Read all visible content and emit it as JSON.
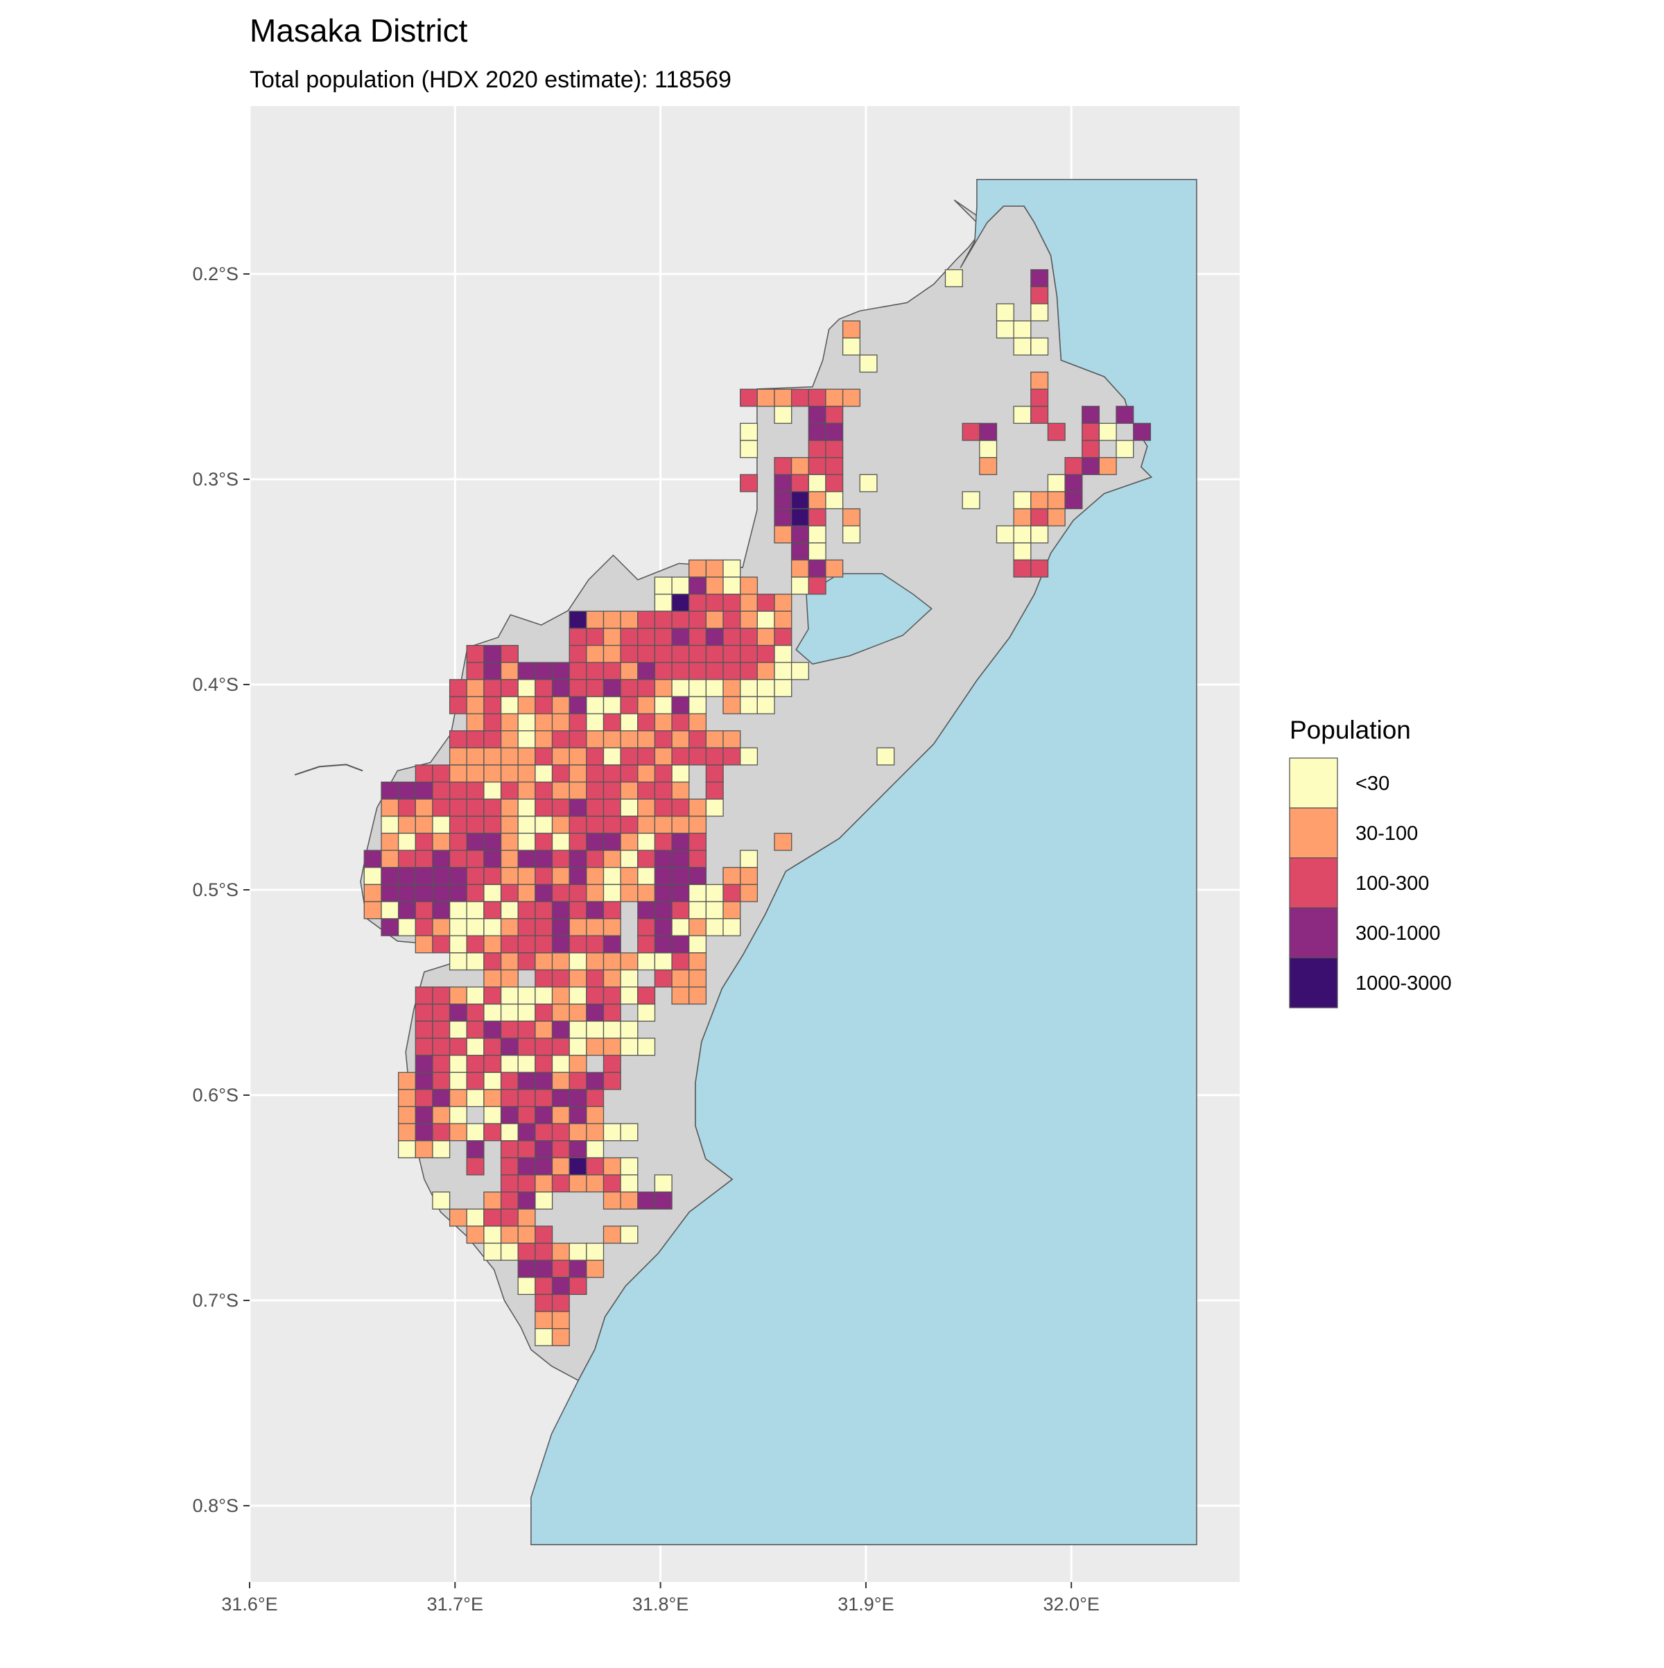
{
  "header": {
    "title": "Masaka District",
    "subtitle": "Total population (HDX 2020 estimate): 118569"
  },
  "chart_data": {
    "type": "map",
    "title": "Masaka District",
    "subtitle": "Total population (HDX 2020 estimate): 118569",
    "lon_range": [
      31.6,
      32.082
    ],
    "lat_range_south": [
      0.118,
      0.838
    ],
    "x_ticks": [
      31.6,
      31.7,
      31.8,
      31.9,
      32.0
    ],
    "x_tick_labels": [
      "31.6°E",
      "31.7°E",
      "31.8°E",
      "31.9°E",
      "32.0°E"
    ],
    "y_ticks_south": [
      0.2,
      0.3,
      0.4,
      0.5,
      0.6,
      0.7,
      0.8
    ],
    "y_tick_labels": [
      "0.2°S",
      "0.3°S",
      "0.4°S",
      "0.5°S",
      "0.6°S",
      "0.7°S",
      "0.8°S"
    ],
    "colors": {
      "panel": "#ebebeb",
      "grid": "#ffffff",
      "land": "#d3d3d3",
      "water": "#add8e6",
      "outline": "#555555"
    },
    "legend": {
      "title": "Population",
      "position": "right",
      "items": [
        {
          "code": "1",
          "label": "<30",
          "color": "#fcfdbf"
        },
        {
          "code": "2",
          "label": "30-100",
          "color": "#fe9f6d"
        },
        {
          "code": "3",
          "label": "100-300",
          "color": "#de4968"
        },
        {
          "code": "4",
          "label": "300-1000",
          "color": "#8c2981"
        },
        {
          "code": "5",
          "label": "1000-3000",
          "color": "#3b0f70"
        }
      ]
    },
    "land_polygon_lonlat_south": [
      [
        31.943,
        0.164
      ],
      [
        31.959,
        0.175
      ],
      [
        31.967,
        0.167
      ],
      [
        31.977,
        0.167
      ],
      [
        31.982,
        0.175
      ],
      [
        31.99,
        0.191
      ],
      [
        31.993,
        0.211
      ],
      [
        31.995,
        0.242
      ],
      [
        32.016,
        0.25
      ],
      [
        32.026,
        0.261
      ],
      [
        32.029,
        0.271
      ],
      [
        32.037,
        0.284
      ],
      [
        32.034,
        0.294
      ],
      [
        32.039,
        0.299
      ],
      [
        32.016,
        0.307
      ],
      [
        32.001,
        0.32
      ],
      [
        31.99,
        0.336
      ],
      [
        31.982,
        0.356
      ],
      [
        31.97,
        0.377
      ],
      [
        31.954,
        0.398
      ],
      [
        31.933,
        0.429
      ],
      [
        31.913,
        0.449
      ],
      [
        31.887,
        0.475
      ],
      [
        31.861,
        0.491
      ],
      [
        31.851,
        0.512
      ],
      [
        31.84,
        0.532
      ],
      [
        31.83,
        0.548
      ],
      [
        31.82,
        0.574
      ],
      [
        31.817,
        0.594
      ],
      [
        31.817,
        0.615
      ],
      [
        31.822,
        0.631
      ],
      [
        31.835,
        0.641
      ],
      [
        31.814,
        0.657
      ],
      [
        31.799,
        0.677
      ],
      [
        31.783,
        0.693
      ],
      [
        31.773,
        0.708
      ],
      [
        31.768,
        0.724
      ],
      [
        31.76,
        0.739
      ],
      [
        31.747,
        0.732
      ],
      [
        31.737,
        0.724
      ],
      [
        31.732,
        0.713
      ],
      [
        31.724,
        0.7
      ],
      [
        31.719,
        0.685
      ],
      [
        31.706,
        0.669
      ],
      [
        31.693,
        0.657
      ],
      [
        31.685,
        0.641
      ],
      [
        31.68,
        0.62
      ],
      [
        31.678,
        0.6
      ],
      [
        31.676,
        0.579
      ],
      [
        31.68,
        0.558
      ],
      [
        31.685,
        0.54
      ],
      [
        31.701,
        0.535
      ],
      [
        31.696,
        0.527
      ],
      [
        31.672,
        0.525
      ],
      [
        31.657,
        0.514
      ],
      [
        31.654,
        0.496
      ],
      [
        31.657,
        0.481
      ],
      [
        31.662,
        0.46
      ],
      [
        31.672,
        0.442
      ],
      [
        31.688,
        0.438
      ],
      [
        31.698,
        0.424
      ],
      [
        31.703,
        0.398
      ],
      [
        31.706,
        0.382
      ],
      [
        31.721,
        0.377
      ],
      [
        31.727,
        0.366
      ],
      [
        31.742,
        0.371
      ],
      [
        31.755,
        0.364
      ],
      [
        31.765,
        0.349
      ],
      [
        31.777,
        0.337
      ],
      [
        31.789,
        0.349
      ],
      [
        31.809,
        0.341
      ],
      [
        31.84,
        0.343
      ],
      [
        31.847,
        0.315
      ],
      [
        31.847,
        0.256
      ],
      [
        31.874,
        0.255
      ],
      [
        31.879,
        0.242
      ],
      [
        31.882,
        0.227
      ],
      [
        31.887,
        0.222
      ],
      [
        31.897,
        0.218
      ],
      [
        31.92,
        0.214
      ],
      [
        31.933,
        0.205
      ],
      [
        31.944,
        0.193
      ],
      [
        31.95,
        0.187
      ],
      [
        31.957,
        0.178
      ],
      [
        31.949,
        0.17
      ]
    ],
    "lake_victoria_polygon_lonlat_south": [
      [
        31.954,
        0.154
      ],
      [
        32.061,
        0.154
      ],
      [
        32.061,
        0.819
      ],
      [
        31.737,
        0.819
      ],
      [
        31.737,
        0.796
      ],
      [
        31.747,
        0.765
      ],
      [
        31.76,
        0.739
      ],
      [
        31.768,
        0.724
      ],
      [
        31.773,
        0.708
      ],
      [
        31.783,
        0.693
      ],
      [
        31.799,
        0.677
      ],
      [
        31.814,
        0.657
      ],
      [
        31.835,
        0.641
      ],
      [
        31.822,
        0.631
      ],
      [
        31.817,
        0.615
      ],
      [
        31.817,
        0.594
      ],
      [
        31.82,
        0.574
      ],
      [
        31.83,
        0.548
      ],
      [
        31.84,
        0.532
      ],
      [
        31.851,
        0.512
      ],
      [
        31.861,
        0.491
      ],
      [
        31.887,
        0.475
      ],
      [
        31.913,
        0.449
      ],
      [
        31.933,
        0.429
      ],
      [
        31.954,
        0.398
      ],
      [
        31.97,
        0.377
      ],
      [
        31.982,
        0.356
      ],
      [
        31.99,
        0.336
      ],
      [
        32.001,
        0.32
      ],
      [
        32.016,
        0.307
      ],
      [
        32.039,
        0.299
      ],
      [
        32.034,
        0.294
      ],
      [
        32.037,
        0.284
      ],
      [
        32.029,
        0.271
      ],
      [
        32.026,
        0.261
      ],
      [
        32.016,
        0.25
      ],
      [
        31.995,
        0.242
      ],
      [
        31.993,
        0.211
      ],
      [
        31.99,
        0.191
      ],
      [
        31.982,
        0.175
      ],
      [
        31.977,
        0.167
      ],
      [
        31.967,
        0.167
      ],
      [
        31.959,
        0.175
      ],
      [
        31.946,
        0.197
      ],
      [
        31.953,
        0.184
      ],
      [
        31.954,
        0.167
      ]
    ],
    "small_lake_polygon_lonlat_south": [
      [
        31.871,
        0.356
      ],
      [
        31.887,
        0.346
      ],
      [
        31.908,
        0.346
      ],
      [
        31.923,
        0.356
      ],
      [
        31.932,
        0.363
      ],
      [
        31.918,
        0.376
      ],
      [
        31.892,
        0.386
      ],
      [
        31.874,
        0.39
      ],
      [
        31.866,
        0.383
      ],
      [
        31.872,
        0.373
      ]
    ],
    "river_line_lonlat_south": [
      [
        31.622,
        0.444
      ],
      [
        31.634,
        0.44
      ],
      [
        31.647,
        0.439
      ],
      [
        31.655,
        0.442
      ]
    ],
    "grid": {
      "origin_lon": 31.6558,
      "origin_lat_south": 0.1979,
      "cell_deg": 0.00832,
      "encoding": "row, start column, class codes (. = no cell)",
      "rows": [
        [
          0,
          34,
          "1....4"
        ],
        [
          1,
          39,
          "3"
        ],
        [
          2,
          37,
          "1.1"
        ],
        [
          3,
          28,
          "2"
        ],
        [
          3,
          37,
          "11"
        ],
        [
          4,
          28,
          "1"
        ],
        [
          4,
          38,
          "11"
        ],
        [
          5,
          29,
          "1"
        ],
        [
          6,
          39,
          "2"
        ],
        [
          7,
          22,
          "3223322"
        ],
        [
          7,
          39,
          "3"
        ],
        [
          8,
          24,
          "1.43"
        ],
        [
          8,
          38,
          "13..4.4"
        ],
        [
          9,
          22,
          "1...44"
        ],
        [
          9,
          35,
          "34...3.31.4"
        ],
        [
          10,
          22,
          "1...33"
        ],
        [
          10,
          36,
          "1.....3.1"
        ],
        [
          11,
          24,
          "3233"
        ],
        [
          11,
          36,
          "2....342"
        ],
        [
          12,
          22,
          "3.4313.1"
        ],
        [
          12,
          40,
          "14"
        ],
        [
          13,
          24,
          "4521"
        ],
        [
          13,
          35,
          "1..1224"
        ],
        [
          14,
          24,
          "453.2"
        ],
        [
          14,
          38,
          "232"
        ],
        [
          15,
          24,
          "241.1"
        ],
        [
          15,
          37,
          "111"
        ],
        [
          16,
          25,
          "41"
        ],
        [
          16,
          38,
          "1"
        ],
        [
          17,
          19,
          "221...242"
        ],
        [
          17,
          38,
          "33"
        ],
        [
          18,
          17,
          "114212..13"
        ],
        [
          19,
          17,
          "15333232"
        ],
        [
          20,
          12,
          "5222333323212"
        ],
        [
          21,
          12,
          "3323334343323"
        ],
        [
          22,
          6,
          "343...3223333333331"
        ],
        [
          23,
          6,
          "34244433324333333211"
        ],
        [
          24,
          5,
          "32331343343321112111"
        ],
        [
          25,
          5,
          "323123241132141.211"
        ],
        [
          26,
          6,
          "23212231313232"
        ],
        [
          27,
          5,
          "33321233222232322"
        ],
        [
          28,
          5,
          "222223223133233331"
        ],
        [
          28,
          30,
          "1"
        ],
        [
          29,
          3,
          "3322222132333231.3"
        ],
        [
          30,
          1,
          "444333132322332332.3"
        ],
        [
          31,
          1,
          "23233332133433123321"
        ],
        [
          32,
          1,
          "1221333211233332222"
        ],
        [
          33,
          1,
          "2132344213134421343"
        ],
        [
          33,
          24,
          "2"
        ],
        [
          34,
          0,
          "42334334244343213443..1"
        ],
        [
          35,
          0,
          "14444433223242121444.22"
        ],
        [
          36,
          0,
          "24444431324332122441132"
        ],
        [
          37,
          0,
          "214341131334343.443112"
        ],
        [
          38,
          1,
          "41321112334222.341211"
        ],
        [
          39,
          3,
          "231323334334.3441"
        ],
        [
          40,
          5,
          "113232212221132"
        ],
        [
          41,
          7,
          "22.332321.322"
        ],
        [
          42,
          3,
          "33213111213313.22"
        ],
        [
          43,
          3,
          "334311132243.1"
        ],
        [
          44,
          3,
          "3313433241111"
        ],
        [
          45,
          3,
          "33313433312211"
        ],
        [
          46,
          3,
          "4313311312.3"
        ],
        [
          47,
          2,
          "2431313442343"
        ],
        [
          48,
          2,
          "234212333443"
        ],
        [
          49,
          2,
          "2421.1434242"
        ],
        [
          50,
          2,
          "24321314332211"
        ],
        [
          51,
          2,
          "121.4.334341"
        ],
        [
          52,
          6,
          "3.34425321"
        ],
        [
          53,
          8,
          "33232231.1"
        ],
        [
          54,
          4,
          "1..2341...2244"
        ],
        [
          55,
          5,
          "21332"
        ],
        [
          56,
          6,
          "21223...21"
        ],
        [
          57,
          7,
          "1133211"
        ],
        [
          58,
          9,
          "44342"
        ],
        [
          59,
          9,
          "1343"
        ],
        [
          60,
          10,
          "33"
        ],
        [
          61,
          10,
          "22"
        ],
        [
          62,
          10,
          "12"
        ]
      ]
    }
  }
}
